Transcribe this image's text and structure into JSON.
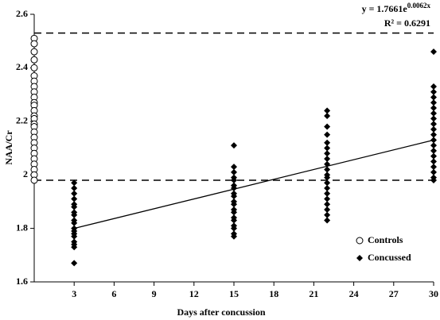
{
  "chart_data": {
    "type": "scatter",
    "x_label": "Days after concussion",
    "y_label": "NAA/Cr",
    "xlim": [
      0,
      30
    ],
    "xticks": [
      3,
      6,
      9,
      12,
      15,
      18,
      21,
      24,
      27,
      30
    ],
    "ylim": [
      1.6,
      2.6
    ],
    "yticks": [
      1.6,
      1.8,
      2,
      2.2,
      2.4,
      2.6
    ],
    "legend": "right",
    "series": [
      {
        "name": "Controls",
        "color": "#000000",
        "marker": "circle",
        "x": [
          0,
          0,
          0,
          0,
          0,
          0,
          0,
          0,
          0,
          0,
          0,
          0,
          0,
          0,
          0,
          0,
          0,
          0,
          0,
          0,
          0,
          0,
          0,
          0,
          0,
          0,
          0
        ],
        "values": [
          2.51,
          2.49,
          2.46,
          2.43,
          2.4,
          2.37,
          2.35,
          2.33,
          2.31,
          2.29,
          2.27,
          2.26,
          2.24,
          2.22,
          2.21,
          2.19,
          2.18,
          2.16,
          2.14,
          2.12,
          2.1,
          2.08,
          2.06,
          2.04,
          2.02,
          2.0,
          1.98
        ]
      },
      {
        "name": "Concussed",
        "color": "#000000",
        "marker": "diamond",
        "x": [
          3,
          3,
          3,
          3,
          3,
          3,
          3,
          3,
          3,
          3,
          3,
          3,
          3,
          3,
          3,
          3,
          3,
          3,
          15,
          15,
          15,
          15,
          15,
          15,
          15,
          15,
          15,
          15,
          15,
          15,
          15,
          15,
          15,
          15,
          15,
          15,
          15,
          22,
          22,
          22,
          22,
          22,
          22,
          22,
          22,
          22,
          22,
          22,
          22,
          22,
          22,
          22,
          22,
          22,
          22,
          22,
          22,
          30,
          30,
          30,
          30,
          30,
          30,
          30,
          30,
          30,
          30,
          30,
          30,
          30,
          30,
          30,
          30,
          30,
          30,
          30,
          30
        ],
        "values": [
          1.97,
          1.95,
          1.93,
          1.91,
          1.89,
          1.88,
          1.86,
          1.85,
          1.83,
          1.82,
          1.8,
          1.79,
          1.78,
          1.77,
          1.75,
          1.74,
          1.73,
          1.67,
          2.11,
          2.03,
          2.01,
          1.99,
          1.98,
          1.96,
          1.95,
          1.93,
          1.92,
          1.9,
          1.89,
          1.87,
          1.86,
          1.84,
          1.83,
          1.81,
          1.8,
          1.78,
          1.77,
          2.24,
          2.22,
          2.18,
          2.15,
          2.12,
          2.1,
          2.08,
          2.06,
          2.04,
          2.02,
          2.0,
          1.99,
          1.97,
          1.95,
          1.93,
          1.91,
          1.89,
          1.87,
          1.85,
          1.83,
          2.46,
          2.33,
          2.31,
          2.29,
          2.27,
          2.25,
          2.23,
          2.21,
          2.19,
          2.17,
          2.15,
          2.13,
          2.11,
          2.09,
          2.07,
          2.05,
          2.03,
          2.01,
          1.99,
          1.98
        ]
      }
    ],
    "trend": {
      "x": [
        3,
        30
      ],
      "values": [
        1.8,
        2.13
      ]
    },
    "reference_lines": [
      2.53,
      1.98
    ],
    "equation": "y = 1.7661e",
    "equation_exponent": "0.0062x",
    "r_squared": "R² = 0.6291"
  }
}
